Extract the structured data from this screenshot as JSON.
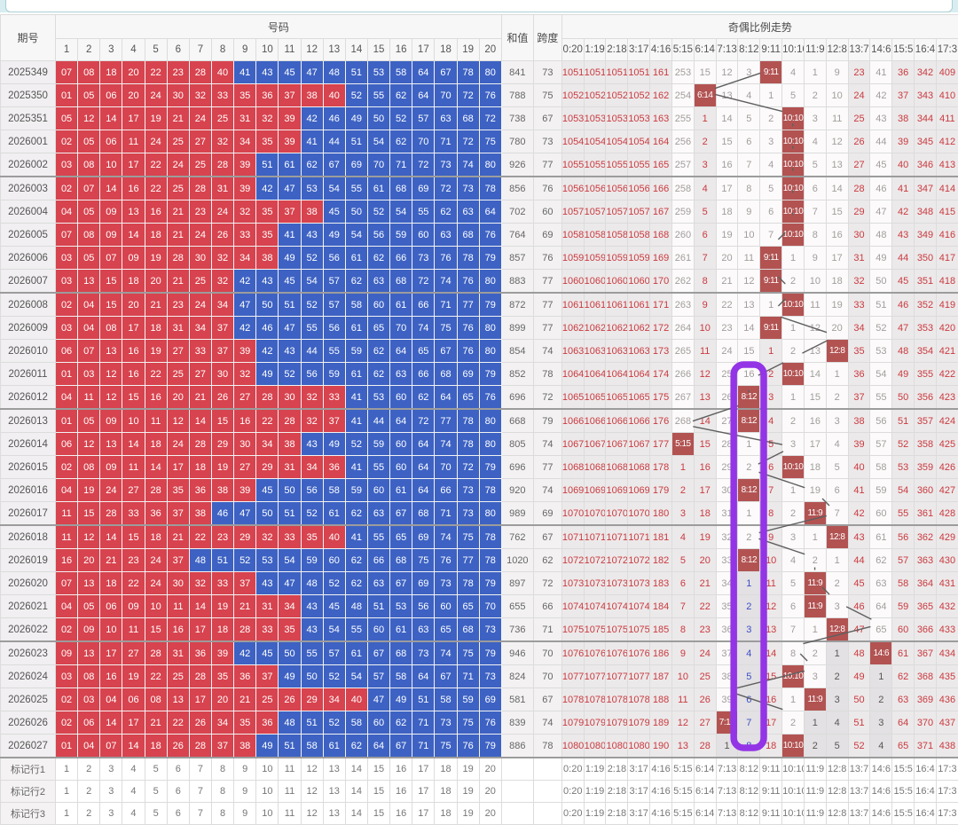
{
  "table": {
    "headers": {
      "period": "期号",
      "numbers_group": "号码",
      "sum": "和值",
      "span": "跨度",
      "trend_group": "奇偶比例走势",
      "number_cols": [
        "1",
        "2",
        "3",
        "4",
        "5",
        "6",
        "7",
        "8",
        "9",
        "10",
        "11",
        "12",
        "13",
        "14",
        "15",
        "16",
        "17",
        "18",
        "19",
        "20"
      ],
      "ratio_cols": [
        "0:20",
        "1:19",
        "2:18",
        "3:17",
        "4:16",
        "5:15",
        "6:14",
        "7:13",
        "8:12",
        "9:11",
        "10:10",
        "11:9",
        "12:8",
        "13:7",
        "14:6",
        "15:5",
        "16:4",
        "17:3"
      ]
    },
    "rows": [
      {
        "p": "2025349",
        "n": "07 08 18 20 22 23 28 40 41 43 45 47 48 51 53 58 64 67 78 80",
        "s": "841",
        "k": "73",
        "t": "1051|r 1051|r 1051|r 1051|r 161|r 253|g 15|g 12|g 3|g 9:11|h 4|g 1|g 9|g 23|r 41|g 36|r 342|r 409|r"
      },
      {
        "p": "2025350",
        "n": "01 05 06 20 24 30 32 33 35 36 37 38 40 52 55 62 64 70 72 76",
        "s": "788",
        "k": "75",
        "t": "1052|r 1052|r 1052|r 1052|r 162|r 254|g 6:14|h 13|g 4|g 1|g 5|g 2|g 10|g 24|r 42|g 37|r 343|r 410|r"
      },
      {
        "p": "2025351",
        "n": "05 12 14 17 19 21 24 25 31 32 39 42 46 49 50 52 57 63 68 72",
        "s": "738",
        "k": "67",
        "t": "1053|r 1053|r 1053|r 1053|r 163|r 255|g 1|r 14|g 5|g 2|g 10:10|h 3|g 11|g 25|r 43|g 38|r 344|r 411|r"
      },
      {
        "p": "2026001",
        "n": "02 05 06 11 24 25 27 32 34 35 39 41 44 51 54 62 70 71 72 75",
        "s": "780",
        "k": "73",
        "t": "1054|r 1054|r 1054|r 1054|r 164|r 256|g 2|r 15|g 6|g 3|g 10:10|h 4|g 12|g 26|r 44|g 39|r 345|r 412|r"
      },
      {
        "p": "2026002",
        "n": "03 08 10 17 22 24 25 28 39 51 61 62 67 69 70 71 72 73 74 80",
        "s": "926",
        "k": "77",
        "t": "1055|r 1055|r 1055|r 1055|r 165|r 257|g 3|r 16|g 7|g 4|g 10:10|h 5|g 13|g 27|r 45|g 40|r 346|r 413|r"
      },
      {
        "p": "2026003",
        "n": "02 07 14 16 22 25 28 31 39 42 47 53 54 55 61 68 69 72 73 78",
        "s": "856",
        "k": "76",
        "t": "1056|r 1056|r 1056|r 1056|r 166|r 258|g 4|r 17|g 8|g 5|g 10:10|h 6|g 14|g 28|r 46|g 41|r 347|r 414|r"
      },
      {
        "p": "2026004",
        "n": "04 05 09 13 16 21 23 24 32 35 37 38 45 50 52 54 55 62 63 64",
        "s": "702",
        "k": "60",
        "t": "1057|r 1057|r 1057|r 1057|r 167|r 259|g 5|r 18|g 9|g 6|g 10:10|h 7|g 15|g 29|r 47|g 42|r 348|r 415|r"
      },
      {
        "p": "2026005",
        "n": "07 08 09 14 18 21 24 26 33 35 41 43 49 54 56 59 60 63 68 76",
        "s": "764",
        "k": "69",
        "t": "1058|r 1058|r 1058|r 1058|r 168|r 260|g 6|r 19|g 10|g 7|g 10:10|h 8|g 16|g 30|r 48|g 43|r 349|r 416|r"
      },
      {
        "p": "2026006",
        "n": "03 05 07 09 19 28 30 32 34 38 49 52 56 61 62 66 73 76 78 79",
        "s": "857",
        "k": "76",
        "t": "1059|r 1059|r 1059|r 1059|r 169|r 261|g 7|r 20|g 11|g 9:11|h 1|g 9|g 17|g 31|r 49|g 44|r 350|r 417|r"
      },
      {
        "p": "2026007",
        "n": "03 13 15 18 20 21 25 32 42 43 45 54 57 62 63 68 72 74 76 80",
        "s": "883",
        "k": "77",
        "t": "1060|r 1060|r 1060|r 1060|r 170|r 262|g 8|r 21|g 12|g 9:11|h 2|g 10|g 18|g 32|r 50|g 45|r 351|r 418|r"
      },
      {
        "p": "2026008",
        "n": "02 04 15 20 21 23 24 34 47 50 51 52 57 58 60 61 66 71 77 79",
        "s": "872",
        "k": "77",
        "t": "1061|r 1061|r 1061|r 1061|r 171|r 263|g 9|r 22|g 13|g 1|g 10:10|h 11|g 19|g 33|r 51|g 46|r 352|r 419|r"
      },
      {
        "p": "2026009",
        "n": "03 04 08 17 18 31 34 37 42 46 47 55 56 61 65 70 74 75 76 80",
        "s": "899",
        "k": "77",
        "t": "1062|r 1062|r 1062|r 1062|r 172|r 264|g 10|r 23|g 14|g 9:11|h 1|g 12|g 20|g 34|r 52|g 47|r 353|r 420|r"
      },
      {
        "p": "2026010",
        "n": "06 07 13 16 19 27 33 37 39 42 43 44 55 59 62 64 65 67 76 80",
        "s": "854",
        "k": "74",
        "t": "1063|r 1063|r 1063|r 1063|r 173|r 265|g 11|r 24|g 15|g 1|r 2|g 13|g 12:8|h 35|r 53|g 48|r 354|r 421|r"
      },
      {
        "p": "2026011",
        "n": "01 03 12 16 22 25 27 30 32 49 52 56 59 61 62 63 66 68 69 79",
        "s": "852",
        "k": "78",
        "t": "1064|r 1064|r 1064|r 1064|r 174|r 266|g 12|r 25|g 16|g 2|r 10:10|h 14|g 1|g 36|r 54|g 49|r 355|r 422|r"
      },
      {
        "p": "2026012",
        "n": "04 11 12 15 16 20 21 26 27 28 30 32 33 41 53 60 62 64 65 76",
        "s": "696",
        "k": "72",
        "t": "1065|r 1065|r 1065|r 1065|r 175|r 267|g 13|r 26|g 8:12|h 3|r 1|g 15|g 2|g 37|r 55|g 50|r 356|r 423|r"
      },
      {
        "p": "2026013",
        "n": "01 05 09 10 11 12 14 15 16 22 28 32 37 41 44 64 72 77 78 80",
        "s": "668",
        "k": "79",
        "t": "1066|r 1066|r 1066|r 1066|r 176|r 268|g 14|r 27|g 8:12|h 4|r 2|g 16|g 3|g 38|r 56|g 51|r 357|r 424|r"
      },
      {
        "p": "2026014",
        "n": "06 12 13 14 18 24 28 29 30 34 38 43 49 52 59 60 64 74 78 80",
        "s": "805",
        "k": "74",
        "t": "1067|r 1067|r 1067|r 1067|r 177|r 5:15|h 15|r 28|g 1|g 5|r 3|g 17|g 4|g 39|r 57|g 52|r 358|r 425|r"
      },
      {
        "p": "2026015",
        "n": "02 08 09 11 14 17 18 19 27 29 31 34 36 41 55 60 64 70 72 79",
        "s": "696",
        "k": "77",
        "t": "1068|r 1068|r 1068|r 1068|r 178|r 1|r 16|r 29|g 2|g 6|r 10:10|h 18|g 5|g 40|r 58|g 53|r 359|r 426|r"
      },
      {
        "p": "2026016",
        "n": "04 19 24 27 28 35 36 38 39 45 50 56 58 59 60 61 64 66 73 78",
        "s": "920",
        "k": "74",
        "t": "1069|r 1069|r 1069|r 1069|r 179|r 2|r 17|r 30|g 8:12|h 7|r 1|g 19|g 6|g 41|r 59|g 54|r 360|r 427|r"
      },
      {
        "p": "2026017",
        "n": "11 15 28 33 36 37 38 46 47 50 51 52 61 62 63 67 68 71 73 80",
        "s": "989",
        "k": "69",
        "t": "1070|r 1070|r 1070|r 1070|r 180|r 3|r 18|r 31|g 1|g 8|r 2|g 11:9|h 7|g 42|r 60|g 55|r 361|r 428|r"
      },
      {
        "p": "2026018",
        "n": "11 12 14 15 18 21 22 23 29 32 33 35 40 41 55 65 69 74 75 78",
        "s": "762",
        "k": "67",
        "t": "1071|r 1071|r 1071|r 1071|r 181|r 4|r 19|r 32|g 2|g 9|r 3|g 1|g 12:8|h 43|r 61|g 56|r 362|r 429|r"
      },
      {
        "p": "2026019",
        "n": "16 20 21 23 24 37 48 51 52 53 54 59 60 62 66 68 75 76 77 78",
        "s": "1020",
        "k": "62",
        "t": "1072|r 1072|r 1072|r 1072|r 182|r 5|r 20|r 33|g 8:12|h 10|r 4|g 2|g 1|g 44|r 62|g 57|r 363|r 430|r"
      },
      {
        "p": "2026020",
        "n": "07 13 18 22 24 30 32 33 37 43 47 48 52 62 63 67 69 73 78 79",
        "s": "897",
        "k": "72",
        "t": "1073|r 1073|r 1073|r 1073|r 183|r 6|r 21|r 34|g 1|b 11|r 5|g 11:9|h 2|g 45|r 63|g 58|r 364|r 431|r"
      },
      {
        "p": "2026021",
        "n": "04 05 06 09 10 11 14 19 21 31 34 43 45 48 51 53 56 60 65 70",
        "s": "655",
        "k": "66",
        "t": "1074|r 1074|r 1074|r 1074|r 184|r 7|r 22|r 35|g 2|b 12|r 6|g 11:9|h 3|g 46|r 64|g 59|r 365|r 432|r"
      },
      {
        "p": "2026022",
        "n": "02 09 10 11 15 16 17 18 28 33 35 43 54 55 60 61 63 65 68 73",
        "s": "736",
        "k": "71",
        "t": "1075|r 1075|r 1075|r 1075|r 185|r 8|r 23|r 36|g 3|b 13|r 7|g 1|g 12:8|h 47|r 65|g 60|r 366|r 433|r"
      },
      {
        "p": "2026023",
        "n": "09 13 17 27 28 31 36 39 42 45 50 55 57 61 67 68 73 74 75 79",
        "s": "946",
        "k": "70",
        "t": "1076|r 1076|r 1076|r 1076|r 186|r 9|r 24|r 37|g 4|b 14|r 8|g 2|g 1|d 48|r 14:6|h 61|r 367|r 434|r"
      },
      {
        "p": "2026024",
        "n": "03 08 16 19 22 25 28 35 36 37 49 50 52 54 57 58 64 67 71 73",
        "s": "824",
        "k": "70",
        "t": "1077|r 1077|r 1077|r 1077|r 187|r 10|r 25|r 38|g 5|b 15|r 10:10|h 3|g 2|d 49|r 1|d 62|r 368|r 435|r"
      },
      {
        "p": "2026025",
        "n": "02 03 04 06 08 13 17 20 21 25 26 29 34 40 47 49 51 58 59 69",
        "s": "581",
        "k": "67",
        "t": "1078|r 1078|r 1078|r 1078|r 188|r 11|r 26|r 39|g 6|b 16|r 1|g 11:9|h 3|d 50|r 2|d 63|r 369|r 436|r"
      },
      {
        "p": "2026026",
        "n": "02 06 14 17 21 22 26 34 35 36 48 51 52 58 60 62 71 73 75 76",
        "s": "839",
        "k": "74",
        "t": "1079|r 1079|r 1079|r 1079|r 189|r 12|r 27|r 7:13|h 7|b 17|r 2|g 1|d 4|d 51|r 3|d 64|r 370|r 437|r"
      },
      {
        "p": "2026027",
        "n": "01 04 07 14 18 26 28 37 38 49 51 58 61 62 64 67 71 75 76 79",
        "s": "886",
        "k": "78",
        "t": "1080|r 1080|r 1080|r 1080|r 190|r 13|r 28|r 1|d 8|b 18|r 10:10|h 2|d 5|d 52|r 4|d 65|r 371|r 438|r"
      }
    ],
    "footer_rows": [
      {
        "label": "标记行1",
        "n": "1 2 3 4 5 6 7 8 9 10 11 12 13 14 15 16 17 18 19 20"
      },
      {
        "label": "标记行2",
        "n": "1 2 3 4 5 6 7 8 9 10 11 12 13 14 15 16 17 18 19 20"
      },
      {
        "label": "标记行3",
        "n": "1 2 3 4 5 6 7 8 9 10 11 12 13 14 15 16 17 18 19 20"
      }
    ]
  },
  "legend": {
    "small_number_color": "#d7434e",
    "big_number_color": "#3d62c3",
    "hit_cell_color": "#b25352",
    "trend_line_color": "#5f5f5f"
  },
  "annotation": {
    "highlighted_column": "8:12",
    "color": "#9334e6"
  }
}
